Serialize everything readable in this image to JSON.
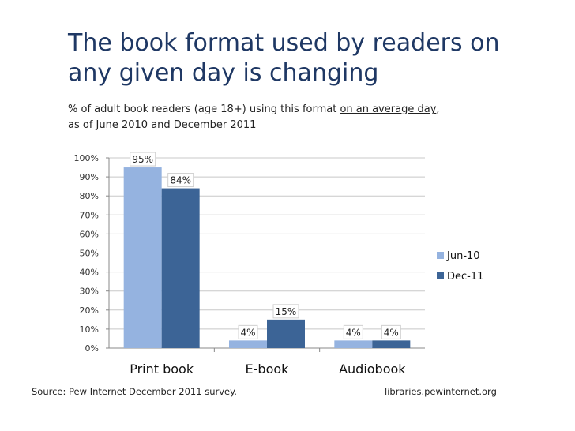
{
  "title_lines": [
    "The book format used by readers on",
    "any given day is changing"
  ],
  "subtitle": {
    "part1": "% of adult book readers (age 18+) using this format ",
    "underlined": "on an average day",
    "part2": ",",
    "line2": "as of June 2010 and December 2011"
  },
  "chart_data": {
    "type": "bar",
    "categories": [
      "Print book",
      "E-book",
      "Audiobook"
    ],
    "series": [
      {
        "name": "Jun-10",
        "values": [
          95,
          4,
          4
        ],
        "labels": [
          "95%",
          "4%",
          "4%"
        ],
        "color": "#95b3e0"
      },
      {
        "name": "Dec-11",
        "values": [
          84,
          15,
          4
        ],
        "labels": [
          "84%",
          "15%",
          "4%"
        ],
        "color": "#3c6496"
      }
    ],
    "ylim": [
      0,
      100
    ],
    "yticks": [
      "0%",
      "10%",
      "20%",
      "30%",
      "40%",
      "50%",
      "60%",
      "70%",
      "80%",
      "90%",
      "100%"
    ],
    "grid": true,
    "legend": "right"
  },
  "footer": {
    "source": "Source: Pew Internet December 2011 survey.",
    "site": "libraries.pewinternet.org"
  }
}
